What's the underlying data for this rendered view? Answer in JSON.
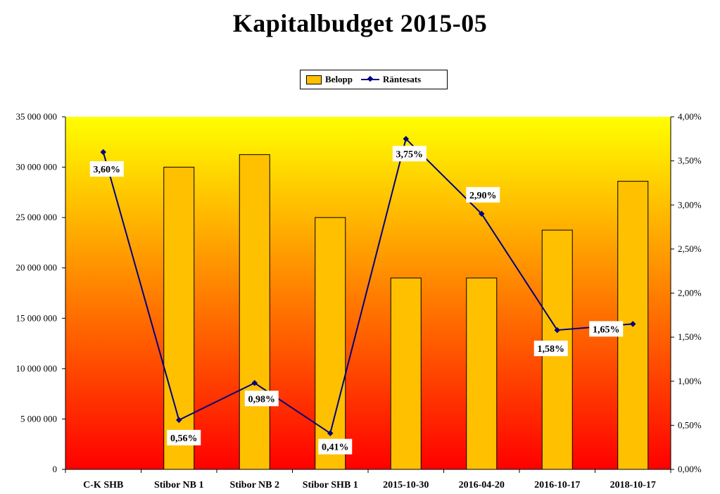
{
  "chart_data": {
    "type": "bar",
    "title": "Kapitalbudget 2015-05",
    "categories": [
      "C-K SHB",
      "Stibor NB 1",
      "Stibor NB 2",
      "Stibor SHB 1",
      "2015-10-30",
      "2016-04-20",
      "2016-10-17",
      "2018-10-17"
    ],
    "series": [
      {
        "name": "Belopp",
        "type": "bar",
        "axis": "left",
        "color": "#FFC000",
        "values": [
          0,
          30000000,
          31250000,
          25000000,
          19000000,
          19000000,
          23750000,
          28600000
        ]
      },
      {
        "name": "Räntesats",
        "type": "line",
        "axis": "right",
        "color": "#000080",
        "values": [
          3.6,
          0.56,
          0.98,
          0.41,
          3.75,
          2.9,
          1.58,
          1.65
        ],
        "labels": [
          "3,60%",
          "0,56%",
          "0,98%",
          "0,41%",
          "3,75%",
          "2,90%",
          "1,58%",
          "1,65%"
        ]
      }
    ],
    "y_left": {
      "range": [
        0,
        35000000
      ],
      "ticks": [
        "0",
        "5 000 000",
        "10 000 000",
        "15 000 000",
        "20 000 000",
        "25 000 000",
        "30 000 000",
        "35 000 000"
      ]
    },
    "y_right": {
      "range": [
        0,
        4.0
      ],
      "ticks": [
        "0,00%",
        "0,50%",
        "1,00%",
        "1,50%",
        "2,00%",
        "2,50%",
        "3,00%",
        "3,50%",
        "4,00%"
      ]
    },
    "legend_position": "top-center",
    "grid": false,
    "background": {
      "top_color": "#FFFF00",
      "bottom_color": "#FF0000"
    }
  },
  "legend": {
    "bar_label": "Belopp",
    "line_label": "Räntesats"
  }
}
